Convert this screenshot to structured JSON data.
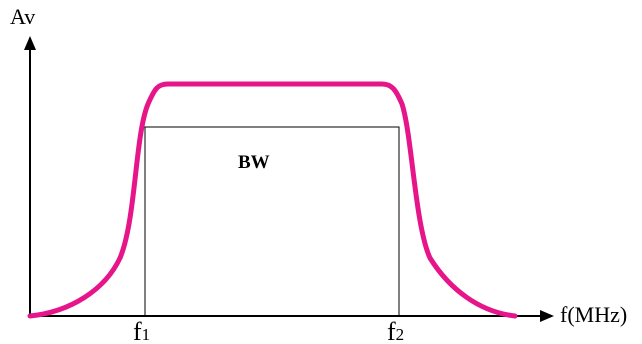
{
  "diagram": {
    "y_axis_label": "Av",
    "x_axis_label": "f(MHz)",
    "band_label": "BW",
    "f1": {
      "base": "f",
      "sub": "1"
    },
    "f2": {
      "base": "f",
      "sub": "2"
    },
    "colors": {
      "response_curve": "#e6168a",
      "axes": "#000000",
      "background": "#ffffff"
    }
  }
}
